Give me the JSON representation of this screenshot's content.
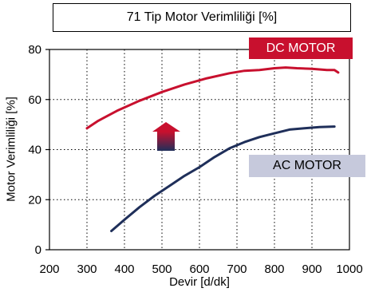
{
  "chart_data": {
    "type": "line",
    "title": "71 Tip Motor Verimliliği [%]",
    "xlabel": "Devir [d/dk]",
    "ylabel": "Motor Verimliliği [%]",
    "xlim": [
      200,
      1000
    ],
    "ylim": [
      0,
      80
    ],
    "x_ticks": [
      "200",
      "300",
      "400",
      "500",
      "600",
      "700",
      "800",
      "900",
      "1000"
    ],
    "y_ticks": [
      "0",
      "20",
      "40",
      "60",
      "80"
    ],
    "grid": true,
    "series": [
      {
        "name": "DC MOTOR",
        "color": "#c8102e",
        "x": [
          300,
          330,
          380,
          440,
          500,
          560,
          620,
          680,
          720,
          760,
          800,
          830,
          860,
          900,
          940,
          960,
          970
        ],
        "y": [
          48.5,
          51.5,
          55.5,
          59.5,
          63,
          66,
          68.5,
          70.5,
          71.5,
          71.8,
          72.5,
          72.8,
          72.5,
          72.3,
          71.8,
          71.8,
          70.8
        ]
      },
      {
        "name": "AC MOTOR",
        "color": "#1f2f5a",
        "x": [
          365,
          400,
          440,
          480,
          520,
          560,
          600,
          640,
          680,
          720,
          760,
          800,
          840,
          880,
          920,
          960
        ],
        "y": [
          7.5,
          12,
          17,
          21.5,
          25.5,
          29.5,
          33,
          37,
          40.5,
          43,
          45,
          46.5,
          48,
          48.5,
          49,
          49.2
        ]
      }
    ],
    "annotation": "arrow-up-icon"
  }
}
